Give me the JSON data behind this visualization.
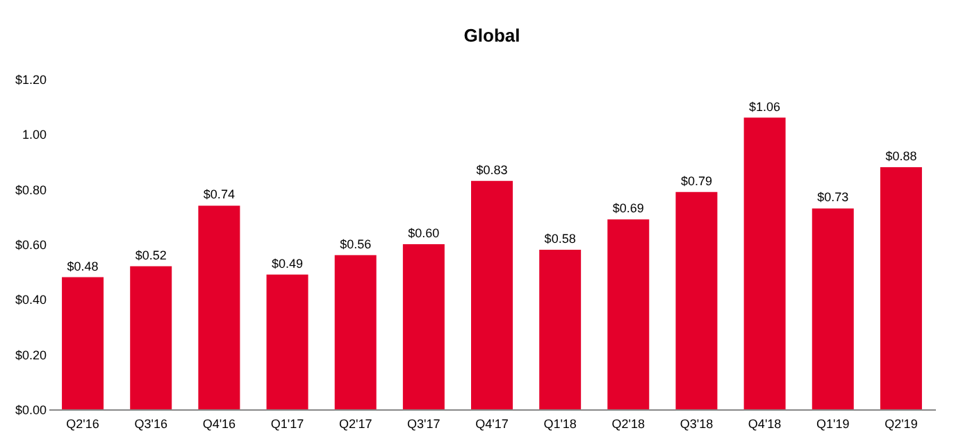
{
  "chart_data": {
    "type": "bar",
    "title": "Global",
    "categories": [
      "Q2'16",
      "Q3'16",
      "Q4'16",
      "Q1'17",
      "Q2'17",
      "Q3'17",
      "Q4'17",
      "Q1'18",
      "Q2'18",
      "Q3'18",
      "Q4'18",
      "Q1'19",
      "Q2'19"
    ],
    "values": [
      0.48,
      0.52,
      0.74,
      0.49,
      0.56,
      0.6,
      0.83,
      0.58,
      0.69,
      0.79,
      1.06,
      0.73,
      0.88
    ],
    "value_labels": [
      "$0.48",
      "$0.52",
      "$0.74",
      "$0.49",
      "$0.56",
      "$0.60",
      "$0.83",
      "$0.58",
      "$0.69",
      "$0.79",
      "$1.06",
      "$0.73",
      "$0.88"
    ],
    "color": "#e4002b",
    "ylim": [
      0,
      1.2
    ],
    "yticks": [
      {
        "value": 0,
        "label": "$0.00"
      },
      {
        "value": 0.2,
        "label": "$0.20"
      },
      {
        "value": 0.4,
        "label": "$0.40"
      },
      {
        "value": 0.6,
        "label": "$0.60"
      },
      {
        "value": 0.8,
        "label": "$0.80"
      },
      {
        "value": 1.0,
        "label": "1.00"
      },
      {
        "value": 1.2,
        "label": "$1.20"
      }
    ],
    "grid": false
  }
}
